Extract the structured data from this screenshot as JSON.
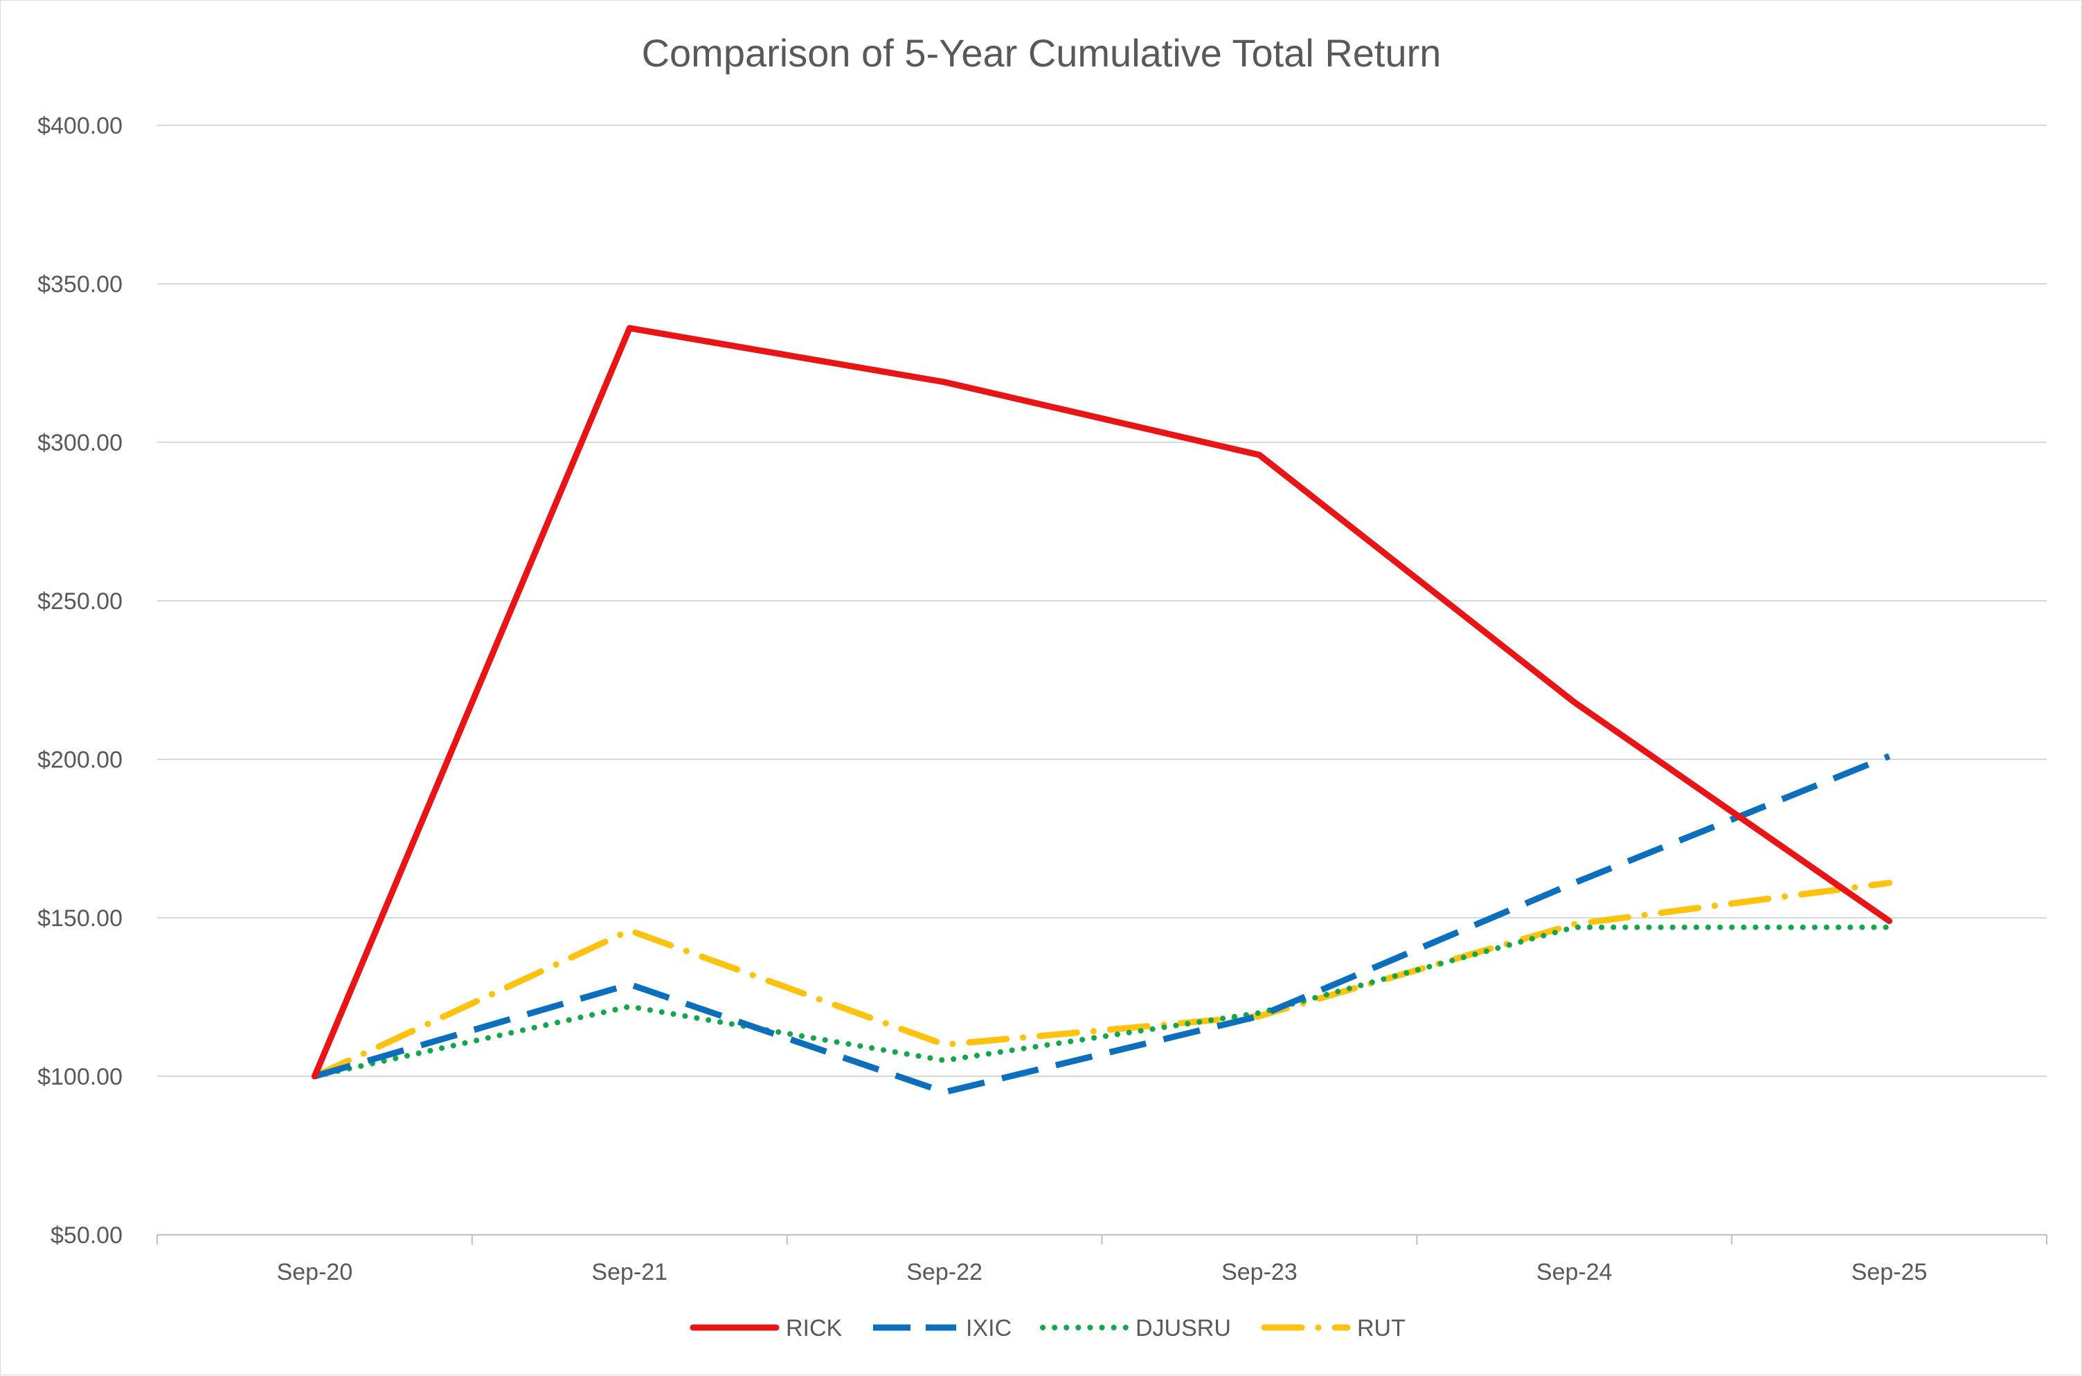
{
  "chart_data": {
    "type": "line",
    "title": "Comparison of 5-Year Cumulative Total Return",
    "xlabel": "",
    "ylabel": "",
    "categories": [
      "Sep-20",
      "Sep-21",
      "Sep-22",
      "Sep-23",
      "Sep-24",
      "Sep-25"
    ],
    "ylim": [
      50,
      400
    ],
    "yticks": [
      50,
      100,
      150,
      200,
      250,
      300,
      350,
      400
    ],
    "ytick_labels": [
      "$50.00",
      "$100.00",
      "$150.00",
      "$200.00",
      "$250.00",
      "$300.00",
      "$350.00",
      "$400.00"
    ],
    "grid": true,
    "legend_position": "bottom",
    "series": [
      {
        "name": "RICK",
        "values": [
          100,
          336,
          319,
          296,
          218,
          149
        ],
        "color": "#e81416",
        "style": "solid"
      },
      {
        "name": "IXIC",
        "values": [
          100,
          129,
          95,
          119,
          161,
          201
        ],
        "color": "#0b6fbd",
        "style": "dash"
      },
      {
        "name": "DJUSRU",
        "values": [
          100,
          122,
          105,
          120,
          147,
          147
        ],
        "color": "#13a64a",
        "style": "dot"
      },
      {
        "name": "RUT",
        "values": [
          100,
          146,
          110,
          119,
          148,
          161
        ],
        "color": "#ffc20e",
        "style": "dashdot"
      }
    ]
  }
}
